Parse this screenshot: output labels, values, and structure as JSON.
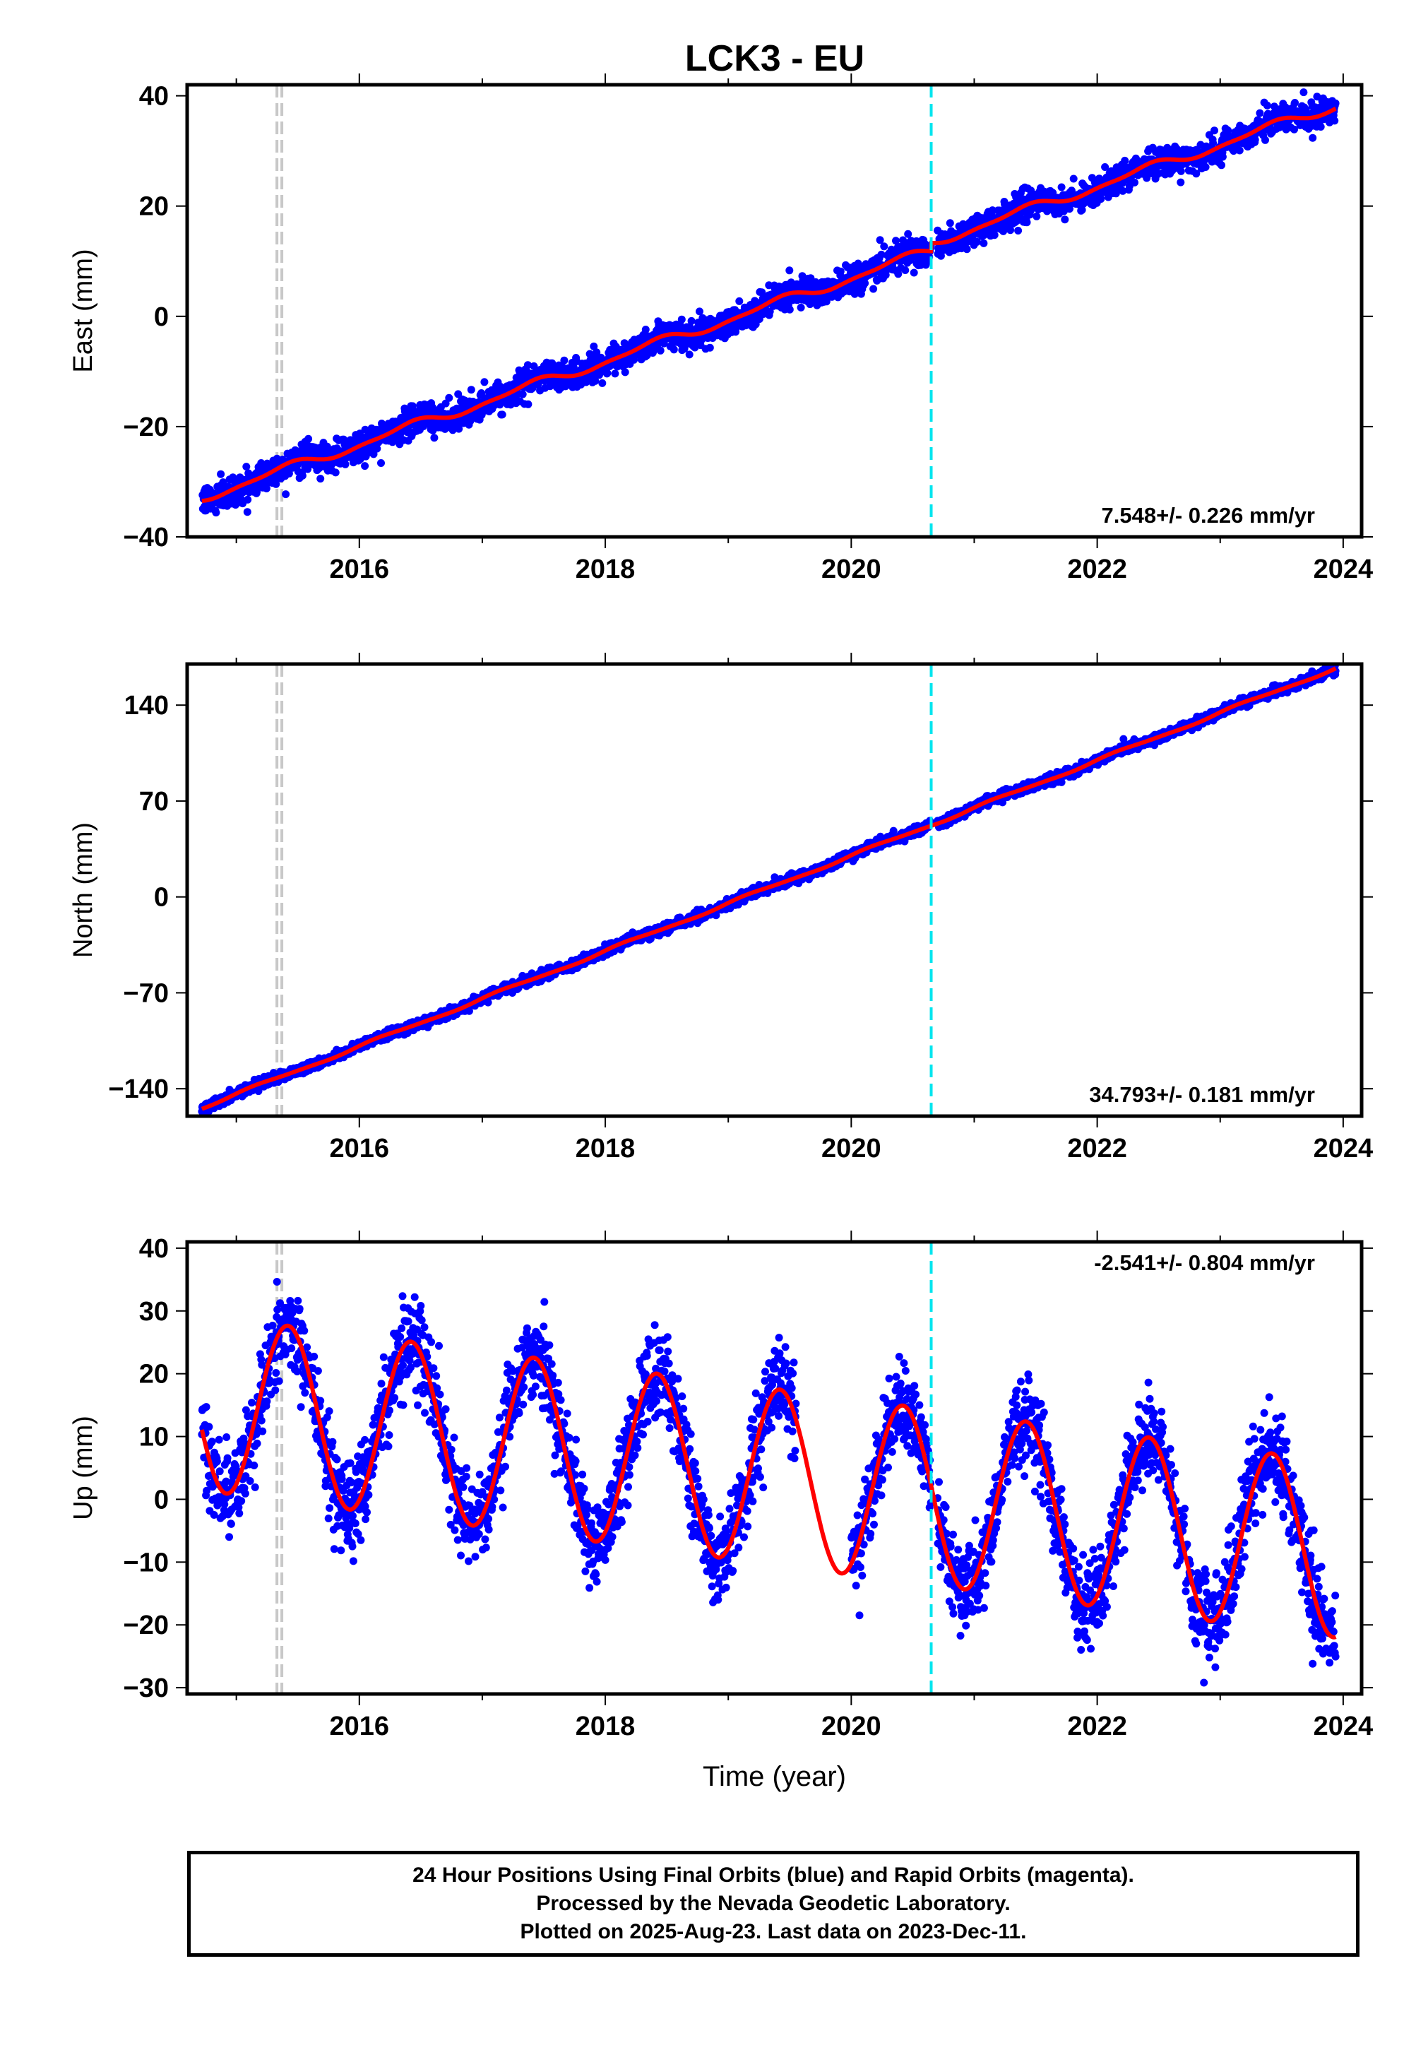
{
  "title": "LCK3 - EU",
  "colors": {
    "data_points": "#0000ff",
    "model_line": "#ff0000",
    "equipment_change": "#c8c8c8",
    "offset_line": "#00e5ee"
  },
  "chart_data": [
    {
      "type": "scatter",
      "name": "east",
      "ylabel": "East (mm)",
      "xlabel": "",
      "xlim": [
        2014.6,
        2024.15
      ],
      "ylim": [
        -40,
        42
      ],
      "xticks": [
        "2016",
        "2018",
        "2020",
        "2022",
        "2024"
      ],
      "yticks": [
        "40",
        "20",
        "0",
        "−20",
        "−40"
      ],
      "rate_label": "7.548+/- 0.226 mm/yr",
      "rate_position": "bottom-right",
      "equipment_change_epochs": [
        2015.33,
        2015.37
      ],
      "offset_epochs": [
        2020.65
      ],
      "model": {
        "rate": 7.548,
        "value_at_2020": 7.0,
        "annual_amp": 0.8,
        "annual_phase": 0.4,
        "semiannual_amp": 0.3,
        "semiannual_phase": 1.0,
        "offset_epoch": 2020.65,
        "offset_size": 1.5
      },
      "observations": {
        "start": 2014.72,
        "end": 2023.94,
        "gaps": [
          [
            2020.65,
            2020.7
          ]
        ],
        "scatter_mm": 1.3
      }
    },
    {
      "type": "scatter",
      "name": "north",
      "ylabel": "North (mm)",
      "xlabel": "",
      "xlim": [
        2014.6,
        2024.15
      ],
      "ylim": [
        -160,
        170
      ],
      "xticks": [
        "2016",
        "2018",
        "2020",
        "2022",
        "2024"
      ],
      "yticks": [
        "140",
        "70",
        "0",
        "−70",
        "−140"
      ],
      "rate_label": "34.793+/- 0.181 mm/yr",
      "rate_position": "bottom-right",
      "equipment_change_epochs": [
        2015.33,
        2015.37
      ],
      "offset_epochs": [
        2020.65
      ],
      "model": {
        "rate": 34.793,
        "value_at_2020": 30.0,
        "annual_amp": 1.0,
        "annual_phase": 0.2,
        "semiannual_amp": 0.3,
        "semiannual_phase": 0.6,
        "offset_epoch": 2020.65,
        "offset_size": 0.0
      },
      "observations": {
        "start": 2014.72,
        "end": 2023.94,
        "gaps": [
          [
            2020.65,
            2020.7
          ]
        ],
        "scatter_mm": 1.8
      }
    },
    {
      "type": "scatter",
      "name": "up",
      "ylabel": "Up (mm)",
      "xlabel": "Time (year)",
      "xlim": [
        2014.6,
        2024.15
      ],
      "ylim": [
        -31,
        41
      ],
      "xticks": [
        "2016",
        "2018",
        "2020",
        "2022",
        "2024"
      ],
      "yticks": [
        "40",
        "30",
        "20",
        "10",
        "0",
        "−10",
        "−20",
        "−30"
      ],
      "rate_label": "-2.541+/- 0.804 mm/yr",
      "rate_position": "top-right",
      "equipment_change_epochs": [
        2015.33,
        2015.37
      ],
      "offset_epochs": [
        2020.65
      ],
      "model": {
        "rate": -2.541,
        "value_at_2020": 2.0,
        "annual_amp": 14.0,
        "annual_phase": 0.42,
        "semiannual_amp": 0.0,
        "semiannual_phase": 0.0,
        "offset_epoch": 2020.65,
        "offset_size": 0.0
      },
      "observations": {
        "start": 2014.72,
        "end": 2023.94,
        "gaps": [
          [
            2019.55,
            2020.0
          ],
          [
            2020.65,
            2020.7
          ]
        ],
        "scatter_mm": 3.5
      }
    }
  ],
  "footer": {
    "line1": "24 Hour Positions Using Final Orbits (blue) and Rapid Orbits (magenta).",
    "line2": "Processed by the Nevada Geodetic Laboratory.",
    "line3": "Plotted on 2025-Aug-23. Last data on 2023-Dec-11."
  }
}
